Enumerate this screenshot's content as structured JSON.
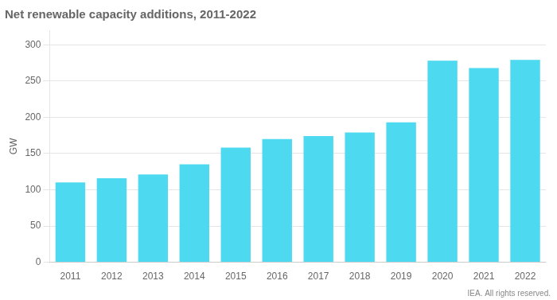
{
  "chart_data": {
    "type": "bar",
    "title": "Net renewable capacity additions, 2011-2022",
    "ylabel": "GW",
    "categories": [
      "2011",
      "2012",
      "2013",
      "2014",
      "2015",
      "2016",
      "2017",
      "2018",
      "2019",
      "2020",
      "2021",
      "2022"
    ],
    "values": [
      110,
      116,
      121,
      135,
      158,
      170,
      174,
      179,
      193,
      278,
      268,
      279
    ],
    "color": "#4DD9F0",
    "ylim": [
      0,
      320
    ],
    "yticks": [
      0,
      50,
      100,
      150,
      200,
      250,
      300
    ],
    "grid": true,
    "annotations": [
      "IEA. All rights reserved."
    ]
  }
}
